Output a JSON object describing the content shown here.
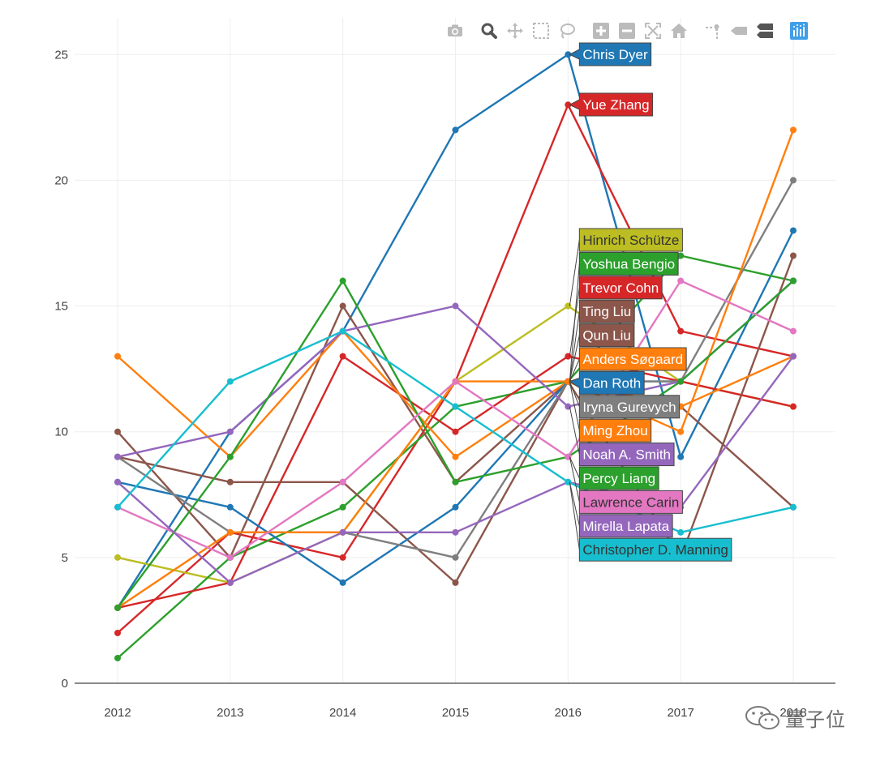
{
  "chart_data": {
    "type": "line",
    "x": [
      2012,
      2013,
      2014,
      2015,
      2016,
      2017,
      2018
    ],
    "ylim": [
      0,
      26
    ],
    "yticks": [
      0,
      5,
      10,
      15,
      20,
      25
    ],
    "xticks": [
      "2012",
      "2013",
      "2014",
      "2015",
      "2016",
      "2017",
      "2018"
    ],
    "grid": true,
    "hover_x": 2016,
    "series": [
      {
        "name": "Chris Dyer",
        "color": "#1f77b4",
        "values": [
          3,
          10,
          14,
          22,
          25,
          9,
          18
        ]
      },
      {
        "name": "Yue Zhang",
        "color": "#d62728",
        "values": [
          2,
          6,
          5,
          12,
          23,
          14,
          13
        ]
      },
      {
        "name": "Hinrich Schütze",
        "color": "#bcbd22",
        "values": [
          5,
          4,
          6,
          12,
          15,
          12,
          11
        ]
      },
      {
        "name": "Yoshua Bengio",
        "color": "#2ca02c",
        "values": [
          1,
          5,
          7,
          11,
          12,
          17,
          16
        ]
      },
      {
        "name": "Trevor Cohn",
        "color": "#d62728",
        "values": [
          3,
          4,
          13,
          10,
          13,
          12,
          11
        ]
      },
      {
        "name": "Ting Liu",
        "color": "#8c564b",
        "values": [
          10,
          5,
          15,
          8,
          12,
          11,
          7
        ]
      },
      {
        "name": "Qun Liu",
        "color": "#8c564b",
        "values": [
          9,
          8,
          8,
          4,
          12,
          5,
          17
        ]
      },
      {
        "name": "Anders Søgaard",
        "color": "#ff7f0e",
        "values": [
          13,
          9,
          14,
          9,
          12,
          11,
          13
        ]
      },
      {
        "name": "Dan Roth",
        "color": "#1f77b4",
        "values": [
          8,
          7,
          4,
          7,
          12,
          12,
          16
        ]
      },
      {
        "name": "Iryna Gurevych",
        "color": "#7f7f7f",
        "values": [
          9,
          6,
          6,
          5,
          12,
          12,
          20
        ]
      },
      {
        "name": "Ming Zhou",
        "color": "#ff7f0e",
        "values": [
          3,
          6,
          6,
          12,
          12,
          10,
          22
        ]
      },
      {
        "name": "Noah A. Smith",
        "color": "#9467bd",
        "values": [
          9,
          10,
          14,
          15,
          11,
          12,
          16
        ]
      },
      {
        "name": "Percy Liang",
        "color": "#2ca02c",
        "values": [
          3,
          9,
          16,
          8,
          9,
          12,
          16
        ]
      },
      {
        "name": "Lawrence Carin",
        "color": "#e377c2",
        "values": [
          7,
          5,
          8,
          12,
          9,
          16,
          14
        ]
      },
      {
        "name": "Mirella Lapata",
        "color": "#9467bd",
        "values": [
          8,
          4,
          6,
          6,
          8,
          7,
          13
        ]
      },
      {
        "name": "Christopher D. Manning",
        "color": "#17becf",
        "values": [
          7,
          12,
          14,
          11,
          8,
          6,
          7
        ]
      }
    ],
    "hover_labels": [
      "Chris Dyer",
      "Yue Zhang",
      "Hinrich Schütze",
      "Yoshua Bengio",
      "Trevor Cohn",
      "Ting Liu",
      "Qun Liu",
      "Anders Søgaard",
      "Dan Roth",
      "Iryna Gurevych",
      "Ming Zhou",
      "Noah A. Smith",
      "Percy Liang",
      "Lawrence Carin",
      "Mirella Lapata",
      "Christopher D. Manning"
    ]
  },
  "toolbar": {
    "buttons": [
      "camera-icon",
      "zoom-icon",
      "pan-icon",
      "box-select-icon",
      "lasso-select-icon",
      "zoom-in-icon",
      "zoom-out-icon",
      "autoscale-icon",
      "reset-axes-icon",
      "spike-lines-icon",
      "show-closest-icon",
      "compare-data-icon",
      "plotly-logo-icon"
    ]
  },
  "watermark": {
    "text": "量子位"
  }
}
